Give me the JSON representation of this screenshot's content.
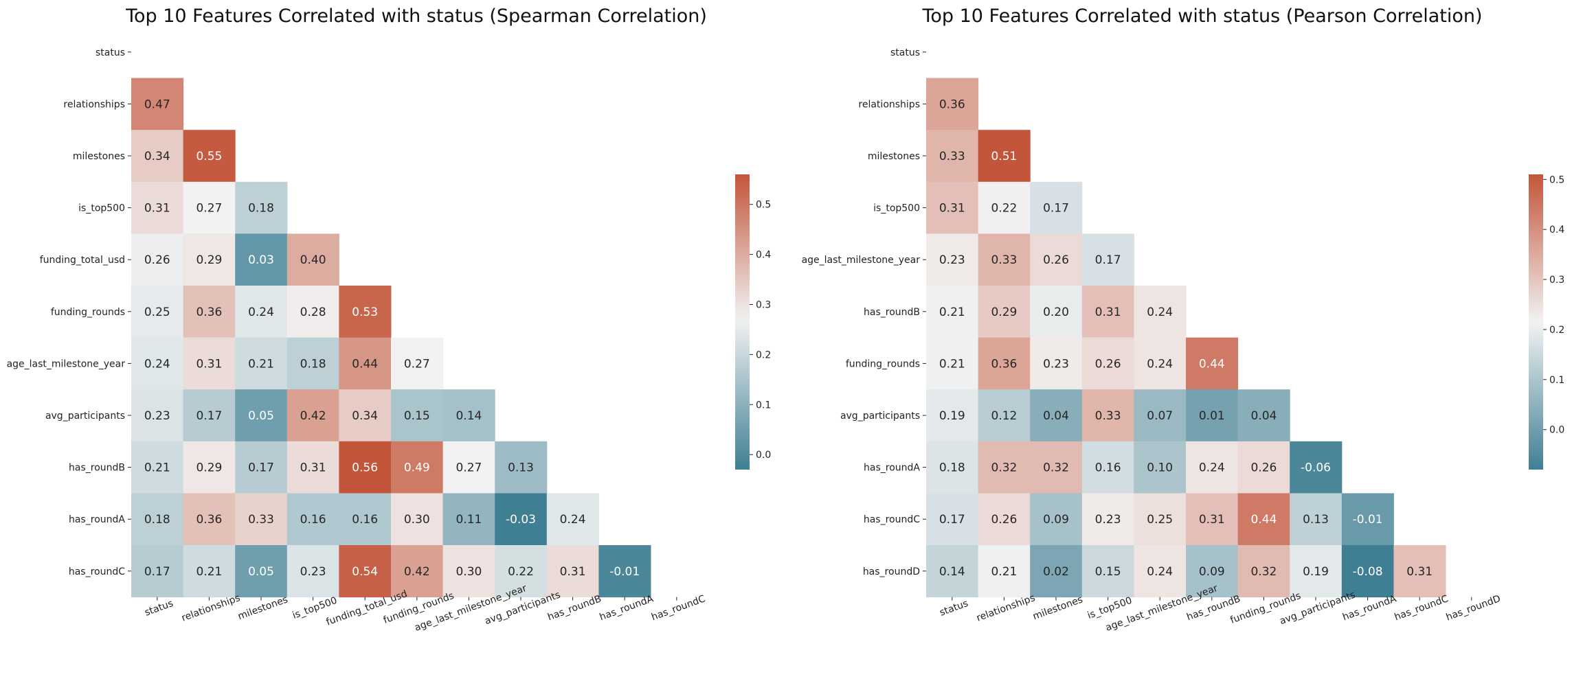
{
  "chart_data": [
    {
      "type": "heatmap",
      "title": "Top 10 Features Correlated with status (Spearman Correlation)",
      "labels": [
        "status",
        "relationships",
        "milestones",
        "is_top500",
        "funding_total_usd",
        "funding_rounds",
        "age_last_milestone_year",
        "avg_participants",
        "has_roundB",
        "has_roundA",
        "has_roundC"
      ],
      "matrix": [
        [],
        [
          0.47
        ],
        [
          0.34,
          0.55
        ],
        [
          0.31,
          0.27,
          0.18
        ],
        [
          0.26,
          0.29,
          0.03,
          0.4
        ],
        [
          0.25,
          0.36,
          0.24,
          0.28,
          0.53
        ],
        [
          0.24,
          0.31,
          0.21,
          0.18,
          0.44,
          0.27
        ],
        [
          0.23,
          0.17,
          0.05,
          0.42,
          0.34,
          0.15,
          0.14
        ],
        [
          0.21,
          0.29,
          0.17,
          0.31,
          0.56,
          0.49,
          0.27,
          0.13
        ],
        [
          0.18,
          0.36,
          0.33,
          0.16,
          0.16,
          0.3,
          0.11,
          -0.03,
          0.24
        ],
        [
          0.17,
          0.21,
          0.05,
          0.23,
          0.54,
          0.42,
          0.3,
          0.22,
          0.31,
          -0.01
        ]
      ],
      "mask": "upper triangle incl. diagonal",
      "colormap": "diverging teal-white-red",
      "colors": {
        "low": "#3f7f93",
        "mid": "#f2f2f2",
        "high": "#c3553a"
      },
      "vmin": -0.03,
      "vmax": 0.56,
      "center": 0.27,
      "colorbar_ticks": [
        "0.0",
        "0.1",
        "0.2",
        "0.3",
        "0.4",
        "0.5"
      ],
      "xtick_rotation_deg": -20
    },
    {
      "type": "heatmap",
      "title": "Top 10 Features Correlated with status (Pearson Correlation)",
      "labels": [
        "status",
        "relationships",
        "milestones",
        "is_top500",
        "age_last_milestone_year",
        "has_roundB",
        "funding_rounds",
        "avg_participants",
        "has_roundA",
        "has_roundC",
        "has_roundD"
      ],
      "matrix": [
        [],
        [
          0.36
        ],
        [
          0.33,
          0.51
        ],
        [
          0.31,
          0.22,
          0.17
        ],
        [
          0.23,
          0.33,
          0.26,
          0.17
        ],
        [
          0.21,
          0.29,
          0.2,
          0.31,
          0.24
        ],
        [
          0.21,
          0.36,
          0.23,
          0.26,
          0.24,
          0.44
        ],
        [
          0.19,
          0.12,
          0.04,
          0.33,
          0.07,
          0.01,
          0.04
        ],
        [
          0.18,
          0.32,
          0.32,
          0.16,
          0.1,
          0.24,
          0.26,
          -0.06
        ],
        [
          0.17,
          0.26,
          0.09,
          0.23,
          0.25,
          0.31,
          0.44,
          0.13,
          -0.01
        ],
        [
          0.14,
          0.21,
          0.02,
          0.15,
          0.24,
          0.09,
          0.32,
          0.19,
          -0.08,
          0.31
        ]
      ],
      "mask": "upper triangle incl. diagonal",
      "colormap": "diverging teal-white-red",
      "colors": {
        "low": "#3f7f93",
        "mid": "#f2f2f2",
        "high": "#c3553a"
      },
      "vmin": -0.08,
      "vmax": 0.51,
      "center": 0.215,
      "colorbar_ticks": [
        "0.0",
        "0.1",
        "0.2",
        "0.3",
        "0.4",
        "0.5"
      ],
      "xtick_rotation_deg": -20
    }
  ]
}
